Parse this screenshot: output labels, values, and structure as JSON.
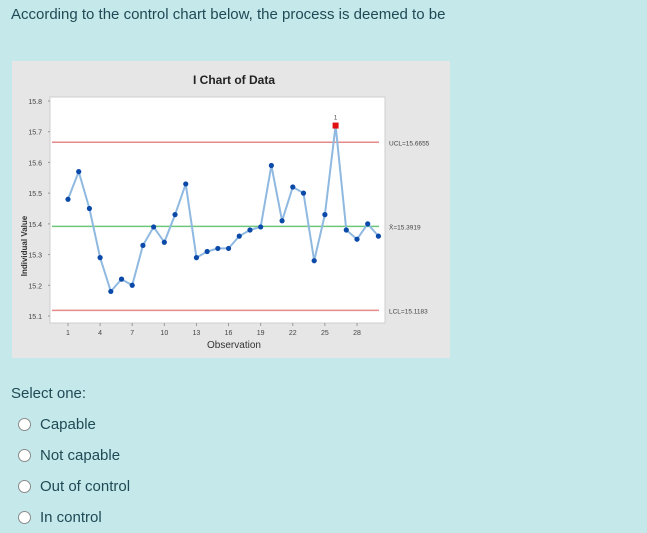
{
  "question": {
    "text": "According to the control chart below, the process is deemed to be"
  },
  "chart_data": {
    "type": "line",
    "title": "I Chart of Data",
    "xlabel": "Observation",
    "ylabel": "Individual Value",
    "x": [
      1,
      2,
      3,
      4,
      5,
      6,
      7,
      8,
      9,
      10,
      11,
      12,
      13,
      14,
      15,
      16,
      17,
      18,
      19,
      20,
      21,
      22,
      23,
      24,
      25,
      26,
      27,
      28,
      29,
      30
    ],
    "values": [
      15.48,
      15.57,
      15.45,
      15.29,
      15.18,
      15.22,
      15.2,
      15.33,
      15.39,
      15.34,
      15.43,
      15.53,
      15.29,
      15.31,
      15.32,
      15.32,
      15.36,
      15.38,
      15.39,
      15.59,
      15.41,
      15.52,
      15.5,
      15.28,
      15.43,
      15.72,
      15.38,
      15.35,
      15.4,
      15.36
    ],
    "x_ticks": [
      "1",
      "4",
      "7",
      "10",
      "13",
      "16",
      "19",
      "22",
      "25",
      "28"
    ],
    "y_ticks": [
      "15.8",
      "15.7",
      "15.6",
      "15.5",
      "15.4",
      "15.3",
      "15.2",
      "15.1"
    ],
    "ylim": [
      15.1,
      15.8
    ],
    "ucl": 15.6655,
    "center": 15.3919,
    "lcl": 15.1183,
    "ucl_label": "UCL=15.6655",
    "center_label": "X̄=15.3919",
    "lcl_label": "LCL=15.1183",
    "out_of_control_points": [
      {
        "observation": 26,
        "flag": "1"
      }
    ],
    "colors": {
      "series": "#0b4aa8",
      "line": "#8fb9e0",
      "limits": "#e58a8a",
      "center": "#6cc77a",
      "flagged": "#e01010"
    },
    "grid": false,
    "legend": "none"
  },
  "answer": {
    "prompt": "Select one:",
    "options": [
      {
        "label": "Capable"
      },
      {
        "label": "Not capable"
      },
      {
        "label": "Out of control"
      },
      {
        "label": "In control"
      }
    ]
  }
}
